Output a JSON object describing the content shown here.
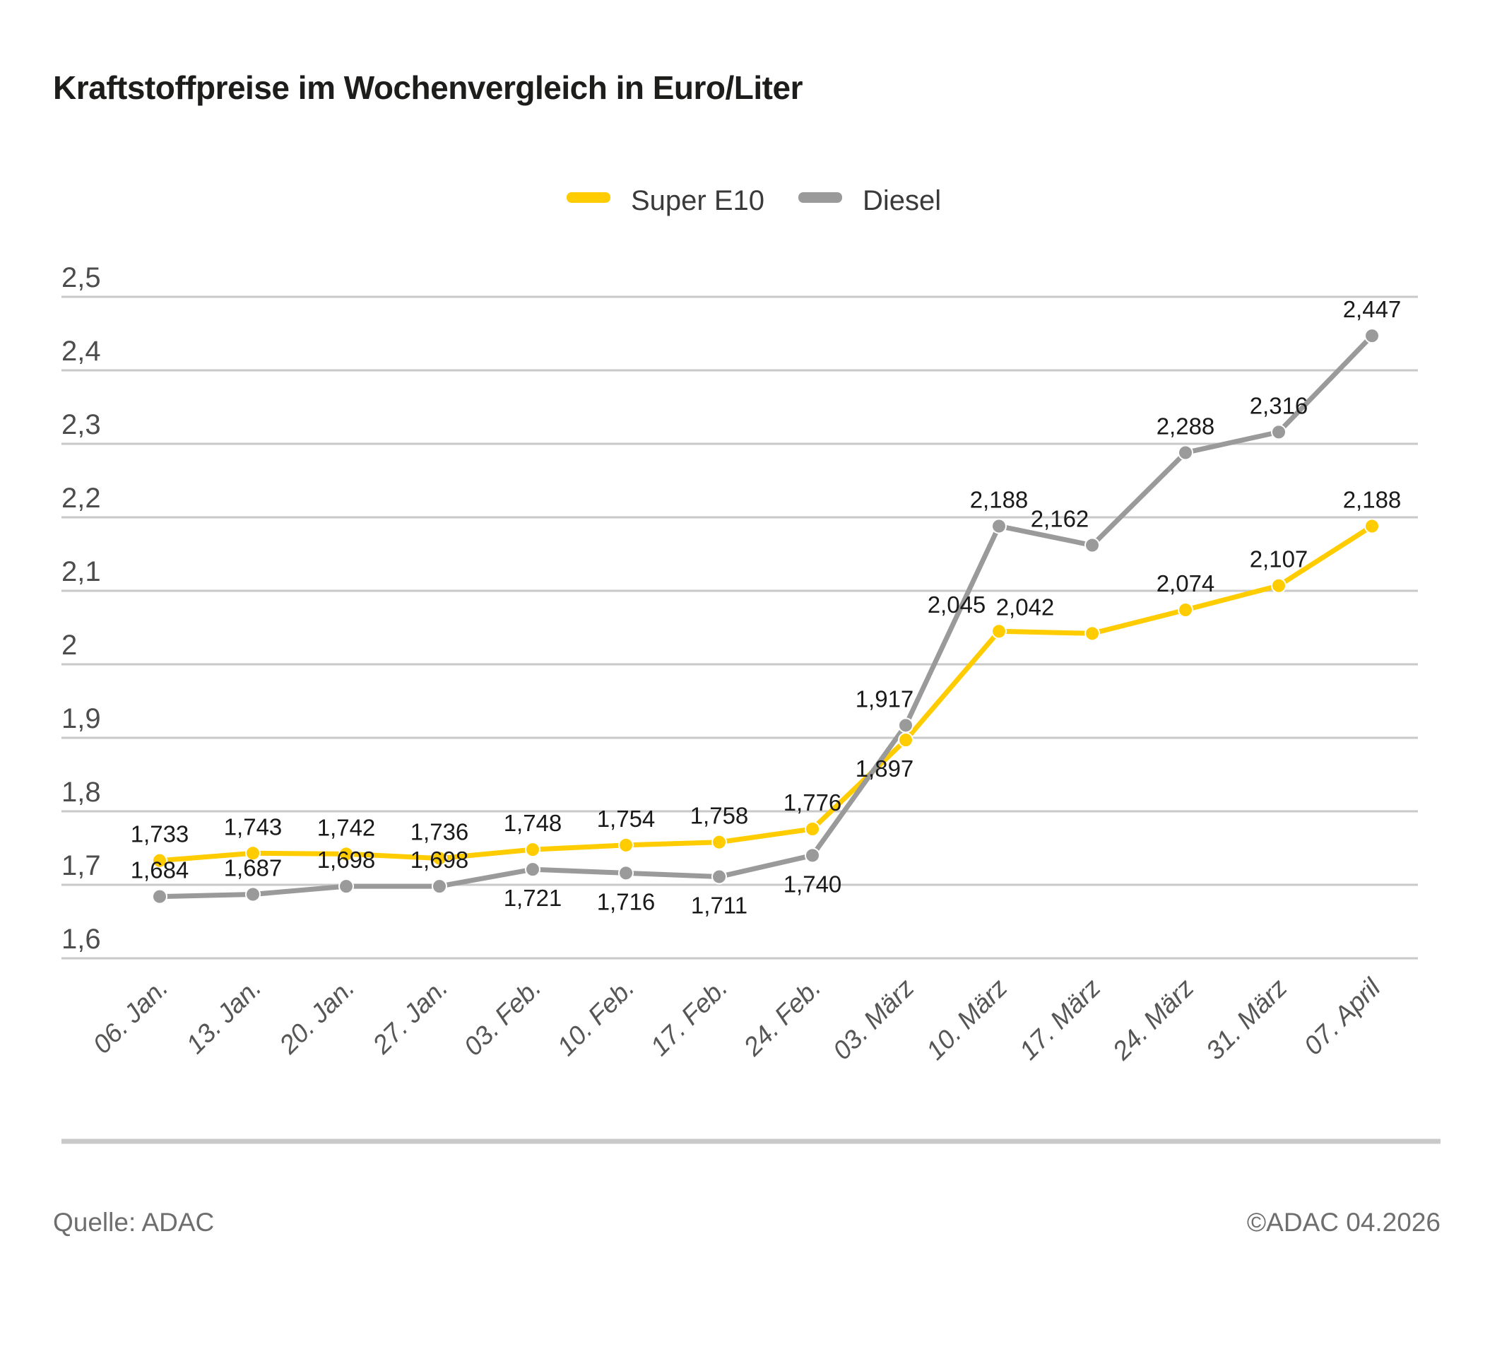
{
  "title": "Kraftstoffpreise im Wochenvergleich in Euro/Liter",
  "footer": {
    "source": "Quelle: ADAC",
    "copyright": "©ADAC 04.2026"
  },
  "colors": {
    "super_e10": "#FFCC00",
    "diesel": "#9A9A9A",
    "grid": "#C9C9C9",
    "value_label": "#1A1A1A",
    "axis_label": "#565655"
  },
  "chart_data": {
    "type": "line",
    "title": "Kraftstoffpreise im Wochenvergleich in Euro/Liter",
    "xlabel": "",
    "ylabel": "Euro/Liter",
    "categories": [
      "06. Jan.",
      "13. Jan.",
      "20. Jan.",
      "27. Jan.",
      "03. Feb.",
      "10. Feb.",
      "17. Feb.",
      "24. Feb.",
      "03. März",
      "10. März",
      "17. März",
      "24. März",
      "31. März",
      "07. April"
    ],
    "series": [
      {
        "name": "Super E10",
        "color": "#FFCC00",
        "values": [
          1.733,
          1.743,
          1.742,
          1.736,
          1.748,
          1.754,
          1.758,
          1.776,
          1.897,
          2.045,
          2.042,
          2.074,
          2.107,
          2.188
        ]
      },
      {
        "name": "Diesel",
        "color": "#9A9A9A",
        "values": [
          1.684,
          1.687,
          1.698,
          1.698,
          1.721,
          1.716,
          1.711,
          1.74,
          1.917,
          2.188,
          2.162,
          2.288,
          2.316,
          2.447
        ]
      }
    ],
    "ylim": [
      1.6,
      2.5
    ],
    "ytick_step": 0.1,
    "ytick_labels": [
      "1,6",
      "1,7",
      "1,8",
      "1,9",
      "2",
      "2,1",
      "2,2",
      "2,3",
      "2,4",
      "2,5"
    ],
    "grid": true,
    "legend_position": "top-center",
    "decimal_separator": ",",
    "value_labels": true
  }
}
